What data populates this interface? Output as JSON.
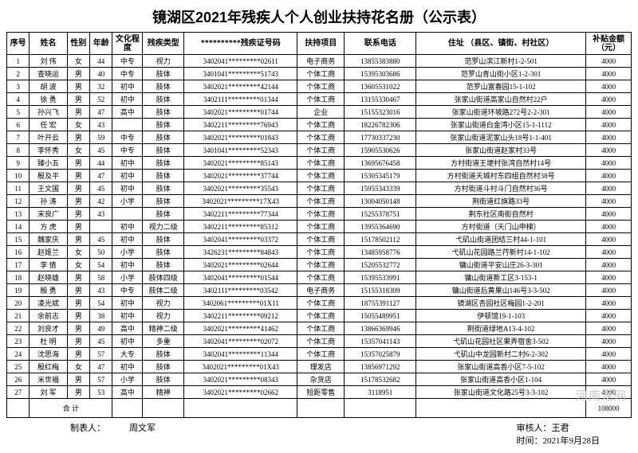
{
  "title": "镜湖区2021年残疾人个人创业扶持花名册（公示表）",
  "columns": [
    "序号",
    "姓名",
    "性别",
    "年龄",
    "文化程度",
    "残疾类型",
    "**********残疾证号码",
    "扶持项目",
    "联系电话",
    "住址\n（县区、镇街、村社区）",
    "补贴金额\n（元）"
  ],
  "rows": [
    [
      "1",
      "刘 伟",
      "女",
      "44",
      "中专",
      "视力",
      "3402041*********02611",
      "电子商务",
      "13855383880",
      "范罗山滨江新村1-2-501",
      "4000"
    ],
    [
      "2",
      "查晓运",
      "男",
      "40",
      "中专",
      "肢体",
      "3401041*********51743",
      "个体工商",
      "15395303686",
      "范罗山青山街小区1-2-301",
      "4000"
    ],
    [
      "3",
      "胡 波",
      "男",
      "32",
      "初中",
      "肢体",
      "3402021*********42144",
      "个体工商",
      "13605531022",
      "范罗山富春园15-1-102",
      "4000"
    ],
    [
      "4",
      "徐 勇",
      "男",
      "52",
      "初中",
      "肢体",
      "3402111*********01344",
      "个体工商",
      "13155330467",
      "张家山街道高家山自然村22户",
      "4000"
    ],
    [
      "5",
      "孙兴飞",
      "男",
      "47",
      "高中",
      "肢体",
      "3402021*********01744",
      "企业",
      "15155323016",
      "张家山街道环坡路272号2-2-301",
      "4000"
    ],
    [
      "6",
      "任 宏",
      "女",
      "43",
      "",
      "肢体",
      "3402211*********76943",
      "个体工商",
      "18226782306",
      "张家山街道白金湾小区15-1-1112",
      "4000"
    ],
    [
      "7",
      "叶开云",
      "男",
      "59",
      "中专",
      "肢体",
      "3402021*********01843",
      "个体工商",
      "17730337230",
      "张家山街道泥家山头18号1-1-401",
      "4000"
    ],
    [
      "8",
      "李怀秀",
      "女",
      "45",
      "中专",
      "肢体",
      "3401041*********52343",
      "个体工商",
      "15905530626",
      "张家山街道赵家村33号",
      "4000"
    ],
    [
      "9",
      "臻小五",
      "男",
      "44",
      "初中",
      "肢体",
      "3402021*********85143",
      "个体工商",
      "13695676458",
      "方村街道王埂村张湾自然村14号",
      "4000"
    ],
    [
      "10",
      "殷及平",
      "男",
      "47",
      "初中",
      "肢体",
      "3402021*********37744",
      "个体工商",
      "15305345179",
      "方村街道天城村东四组自然村38号",
      "4000"
    ],
    [
      "11",
      "王文国",
      "男",
      "45",
      "初中",
      "肢体",
      "3402021*********35543",
      "个体工商",
      "15955343339",
      "方村街道斗村斗门自然村36号",
      "4000"
    ],
    [
      "12",
      "孙 涛",
      "男",
      "42",
      "小学",
      "肢体",
      "3402021*********17X43",
      "个体工商",
      "13004050148",
      "荆街道红旗路33号",
      "4000"
    ],
    [
      "13",
      "宋良广",
      "男",
      "43",
      "",
      "肢体",
      "3402211*********77344",
      "个体工商",
      "15255378751",
      "荆东社区南街自然村",
      "4000"
    ],
    [
      "14",
      "方 虎",
      "男",
      "",
      "初中",
      "视力二级",
      "3402211*********85312",
      "个体工商",
      "13955364690",
      "方村街道（天门山申梯）",
      "4000"
    ],
    [
      "15",
      "魏家庆",
      "男",
      "45",
      "初中",
      "肢体",
      "3402041*********03372",
      "个体工商",
      "15178502112",
      "弋矶山街道团结三村44-1-101",
      "4000"
    ],
    [
      "16",
      "赵姬兰",
      "女",
      "50",
      "小学",
      "肢体",
      "3426231*********84843",
      "个体工商",
      "13485958776",
      "弋矶山花园路兰荇新村14-1-102",
      "4000"
    ],
    [
      "17",
      "李 倩",
      "女",
      "54",
      "初中",
      "肢体",
      "3402021*********02644",
      "个体工商",
      "15205532772",
      "镛山街道平安山庄26-3-301",
      "4000"
    ],
    [
      "18",
      "赵晓雄",
      "男",
      "58",
      "小学",
      "肢体四级",
      "3402041*********01544",
      "个体工商",
      "15395533991",
      "镛山街道新工区3-153-1",
      "4000"
    ],
    [
      "19",
      "殷 勇",
      "男",
      "43",
      "中专",
      "肢体二级",
      "3402111*********03542",
      "电子商务",
      "15155318309",
      "镛山街道后黄果山146号3-3-502",
      "4000"
    ],
    [
      "20",
      "凌光斌",
      "男",
      "54",
      "初中",
      "视力",
      "3402061*********01X11",
      "个体工商",
      "18755391127",
      "镜湖区杏园社区梅园1-2-201",
      "4000"
    ],
    [
      "21",
      "余前志",
      "男",
      "38",
      "初中",
      "视力",
      "3402211*********09212",
      "个体工商",
      "15055489951",
      "伊顿馆19-1-103",
      "4000"
    ],
    [
      "22",
      "刘良才",
      "男",
      "49",
      "高中",
      "精神二级",
      "3402021*********41462",
      "个体工商",
      "13866369946",
      "荆街道绿地A13-4-102",
      "4000"
    ],
    [
      "23",
      "杜 明",
      "男",
      "45",
      "初中",
      "多重",
      "3402041*********02072",
      "个体工商",
      "15357041143",
      "弋矶山花园社区果弄宿舍3-502",
      "4000"
    ],
    [
      "24",
      "沈思海",
      "男",
      "57",
      "大专",
      "肢体",
      "3402041*********11344",
      "个体工商",
      "15357025879",
      "弋矶山中龙园新村二村6-2-302",
      "4000"
    ],
    [
      "25",
      "殷红梅",
      "女",
      "47",
      "初中",
      "肢体",
      "3402021*********01X43",
      "理发店",
      "13856971292",
      "张家山街道高香小区7-5-102",
      "4000"
    ],
    [
      "26",
      "米世福",
      "男",
      "57",
      "小学",
      "肢体",
      "3402021*********08343",
      "杂货店",
      "15178532682",
      "张家山街道高香小区1-104",
      "4000"
    ],
    [
      "27",
      "刘 军",
      "男",
      "53",
      "高中",
      "精神",
      "3402021*********02662",
      "短距零售",
      "3118951",
      "张家山街道文化路25号3-3-102",
      "4000"
    ]
  ],
  "sum_label": "合    计",
  "sum_total": "108000",
  "footer": {
    "preparer_label": "制表人：",
    "preparer_name": "周文军",
    "reviewer_label": "审核人：",
    "reviewer_name": "王君",
    "date_label": "时间：",
    "date_value": "2021年9月28日"
  },
  "watermark": "河南龙网"
}
